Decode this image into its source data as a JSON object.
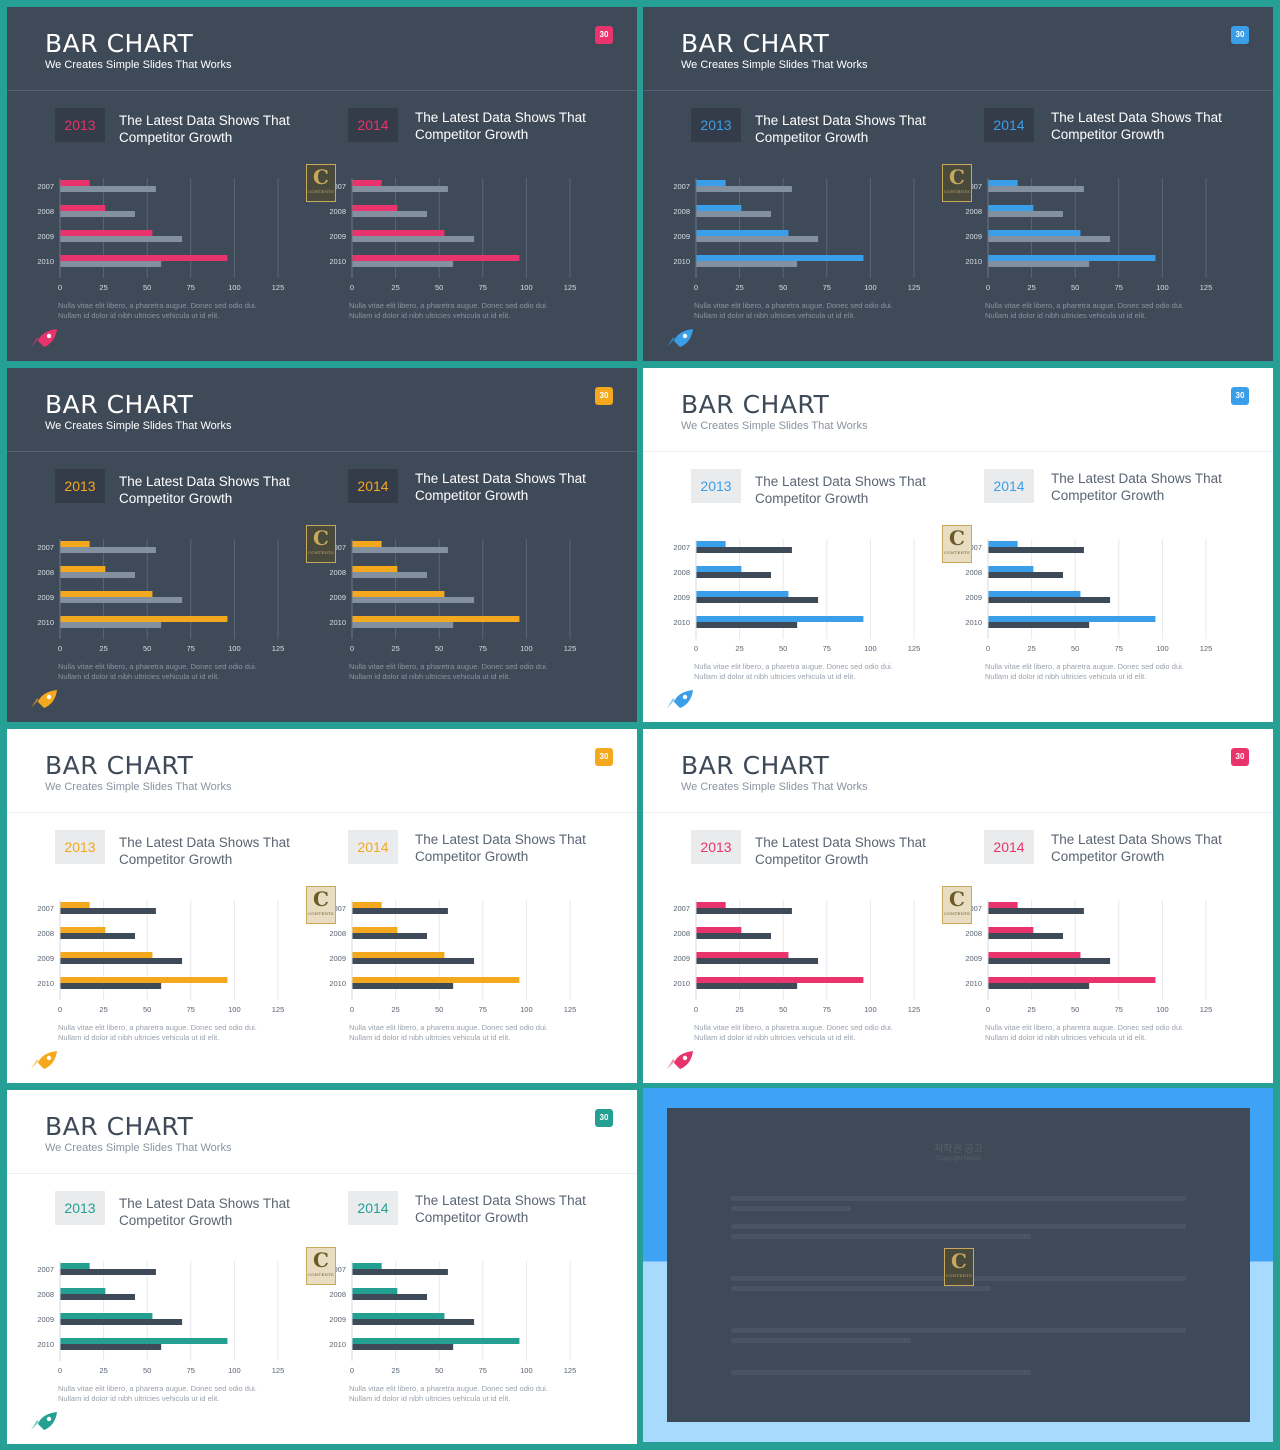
{
  "slides": [
    {
      "title": "BAR CHART",
      "subtitle": "We Creates Simple Slides That Works",
      "badge": "30",
      "panels": [
        {
          "year": "2013",
          "heading_line1": "The Latest Data Shows That",
          "heading_line2": "Competitor Growth",
          "note_line1": "Nulla vitae elit libero, a pharetra augue. Donec sed odio dui.",
          "note_line2": "Nullam id dolor id nibh ultricies vehicula ut id elit."
        },
        {
          "year": "2014",
          "heading_line1": "The Latest Data Shows That",
          "heading_line2": "Competitor Growth",
          "note_line1": "Nulla vitae elit libero, a pharetra augue. Donec sed odio dui.",
          "note_line2": "Nullam id dolor id nibh ultricies vehicula ut id elit."
        }
      ]
    },
    {
      "title": "BAR CHART",
      "subtitle": "We Creates Simple Slides That Works",
      "badge": "30",
      "panels": [
        {
          "year": "2013",
          "heading_line1": "The Latest Data Shows That",
          "heading_line2": "Competitor Growth",
          "note_line1": "Nulla vitae elit libero, a pharetra augue. Donec sed odio dui.",
          "note_line2": "Nullam id dolor id nibh ultricies vehicula ut id elit."
        },
        {
          "year": "2014",
          "heading_line1": "The Latest Data Shows That",
          "heading_line2": "Competitor Growth",
          "note_line1": "Nulla vitae elit libero, a pharetra augue. Donec sed odio dui.",
          "note_line2": "Nullam id dolor id nibh ultricies vehicula ut id elit."
        }
      ]
    },
    {
      "title": "BAR CHART",
      "subtitle": "We Creates Simple Slides That Works",
      "badge": "30",
      "panels": [
        {
          "year": "2013",
          "heading_line1": "The Latest Data Shows That",
          "heading_line2": "Competitor Growth",
          "note_line1": "Nulla vitae elit libero, a pharetra augue. Donec sed odio dui.",
          "note_line2": "Nullam id dolor id nibh ultricies vehicula ut id elit."
        },
        {
          "year": "2014",
          "heading_line1": "The Latest Data Shows That",
          "heading_line2": "Competitor Growth",
          "note_line1": "Nulla vitae elit libero, a pharetra augue. Donec sed odio dui.",
          "note_line2": "Nullam id dolor id nibh ultricies vehicula ut id elit."
        }
      ]
    },
    {
      "title": "BAR CHART",
      "subtitle": "We Creates Simple Slides That Works",
      "badge": "30",
      "panels": [
        {
          "year": "2013",
          "heading_line1": "The Latest Data Shows That",
          "heading_line2": "Competitor Growth",
          "note_line1": "Nulla vitae elit libero, a pharetra augue. Donec sed odio dui.",
          "note_line2": "Nullam id dolor id nibh ultricies vehicula ut id elit."
        },
        {
          "year": "2014",
          "heading_line1": "The Latest Data Shows That",
          "heading_line2": "Competitor Growth",
          "note_line1": "Nulla vitae elit libero, a pharetra augue. Donec sed odio dui.",
          "note_line2": "Nullam id dolor id nibh ultricies vehicula ut id elit."
        }
      ]
    },
    {
      "title": "BAR CHART",
      "subtitle": "We Creates Simple Slides That Works",
      "badge": "30",
      "panels": [
        {
          "year": "2013",
          "heading_line1": "The Latest Data Shows That",
          "heading_line2": "Competitor Growth",
          "note_line1": "Nulla vitae elit libero, a pharetra augue. Donec sed odio dui.",
          "note_line2": "Nullam id dolor id nibh ultricies vehicula ut id elit."
        },
        {
          "year": "2014",
          "heading_line1": "The Latest Data Shows That",
          "heading_line2": "Competitor Growth",
          "note_line1": "Nulla vitae elit libero, a pharetra augue. Donec sed odio dui.",
          "note_line2": "Nullam id dolor id nibh ultricies vehicula ut id elit."
        }
      ]
    },
    {
      "title": "BAR CHART",
      "subtitle": "We Creates Simple Slides That Works",
      "badge": "30",
      "panels": [
        {
          "year": "2013",
          "heading_line1": "The Latest Data Shows That",
          "heading_line2": "Competitor Growth",
          "note_line1": "Nulla vitae elit libero, a pharetra augue. Donec sed odio dui.",
          "note_line2": "Nullam id dolor id nibh ultricies vehicula ut id elit."
        },
        {
          "year": "2014",
          "heading_line1": "The Latest Data Shows That",
          "heading_line2": "Competitor Growth",
          "note_line1": "Nulla vitae elit libero, a pharetra augue. Donec sed odio dui.",
          "note_line2": "Nullam id dolor id nibh ultricies vehicula ut id elit."
        }
      ]
    },
    {
      "title": "BAR CHART",
      "subtitle": "We Creates Simple Slides That Works",
      "badge": "30",
      "panels": [
        {
          "year": "2013",
          "heading_line1": "The Latest Data Shows That",
          "heading_line2": "Competitor Growth",
          "note_line1": "Nulla vitae elit libero, a pharetra augue. Donec sed odio dui.",
          "note_line2": "Nullam id dolor id nibh ultricies vehicula ut id elit."
        },
        {
          "year": "2014",
          "heading_line1": "The Latest Data Shows That",
          "heading_line2": "Competitor Growth",
          "note_line1": "Nulla vitae elit libero, a pharetra augue. Donec sed odio dui.",
          "note_line2": "Nullam id dolor id nibh ultricies vehicula ut id elit."
        }
      ]
    }
  ],
  "themes": [
    {
      "mode": "dark",
      "accent": "#e8336d",
      "secondary": "#8390a0"
    },
    {
      "mode": "dark",
      "accent": "#3b9ee8",
      "secondary": "#8390a0"
    },
    {
      "mode": "dark",
      "accent": "#f3a81e",
      "secondary": "#8390a0"
    },
    {
      "mode": "light",
      "accent": "#3b9ee8",
      "secondary": "#3f4a58"
    },
    {
      "mode": "light",
      "accent": "#f3a81e",
      "secondary": "#3f4a58"
    },
    {
      "mode": "light",
      "accent": "#e8336d",
      "secondary": "#3f4a58"
    },
    {
      "mode": "light",
      "accent": "#23a092",
      "secondary": "#3f4a58"
    }
  ],
  "logo": {
    "letter": "C",
    "sub_text": "CONTENTS"
  },
  "notice": {
    "title": "저작권 공고",
    "subtitle": "Copyright Notice"
  },
  "chart_data": {
    "type": "bar",
    "orientation": "horizontal",
    "categories": [
      "2007",
      "2008",
      "2009",
      "2010"
    ],
    "xlim": [
      0,
      125
    ],
    "xticks": [
      "0",
      "25",
      "50",
      "75",
      "100",
      "125"
    ],
    "grid": true,
    "series": [
      {
        "values": [
          17,
          26,
          53,
          96
        ]
      },
      {
        "values": [
          55,
          43,
          70,
          58
        ]
      }
    ]
  }
}
